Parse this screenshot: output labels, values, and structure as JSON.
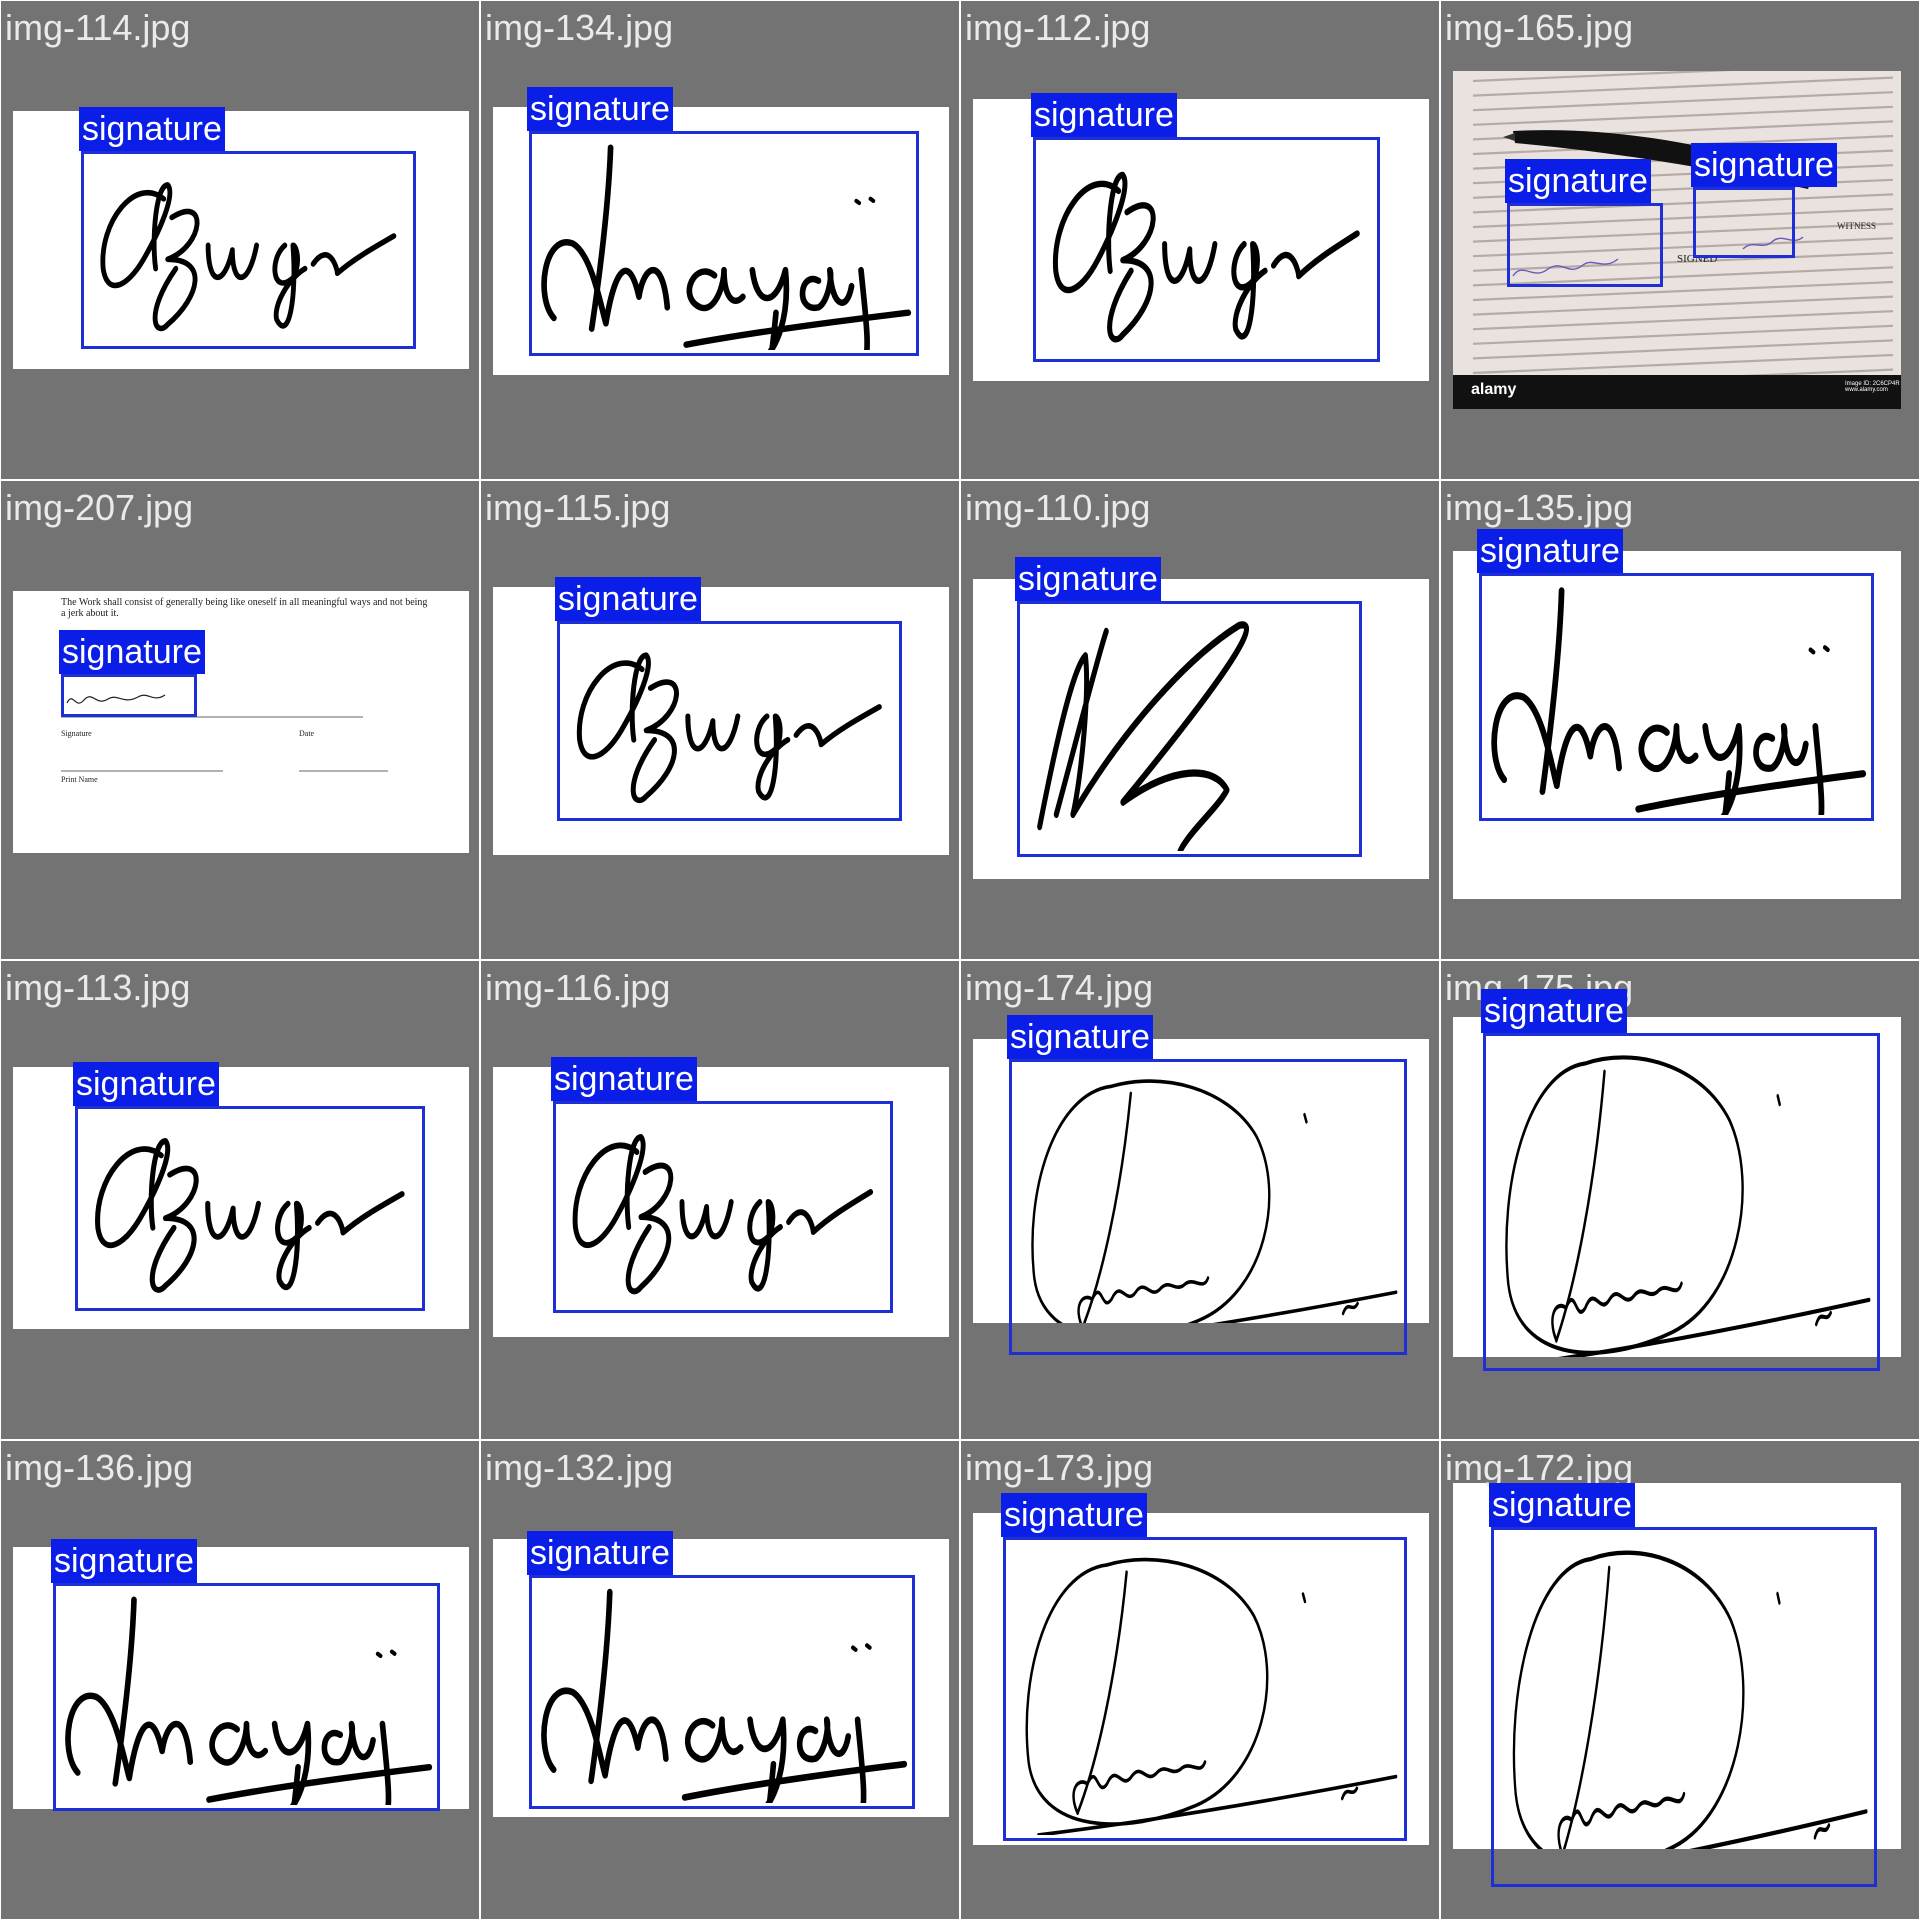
{
  "label_text": "signature",
  "colors": {
    "tile_bg": "#737373",
    "box": "#1f2fd6",
    "label_bg": "#0a1ee8"
  },
  "tiles": [
    {
      "file": "img-114.jpg",
      "sig": "cb",
      "boxes": 1
    },
    {
      "file": "img-134.jpg",
      "sig": "maj",
      "boxes": 1
    },
    {
      "file": "img-112.jpg",
      "sig": "cb",
      "boxes": 1
    },
    {
      "file": "img-165.jpg",
      "sig": "photo",
      "boxes": 2
    },
    {
      "file": "img-207.jpg",
      "sig": "doc",
      "boxes": 1
    },
    {
      "file": "img-115.jpg",
      "sig": "cb",
      "boxes": 1
    },
    {
      "file": "img-110.jpg",
      "sig": "zig",
      "boxes": 1
    },
    {
      "file": "img-135.jpg",
      "sig": "maj",
      "boxes": 1
    },
    {
      "file": "img-113.jpg",
      "sig": "cb",
      "boxes": 1
    },
    {
      "file": "img-116.jpg",
      "sig": "cb",
      "boxes": 1
    },
    {
      "file": "img-174.jpg",
      "sig": "oval",
      "boxes": 1
    },
    {
      "file": "img-175.jpg",
      "sig": "oval",
      "boxes": 1
    },
    {
      "file": "img-136.jpg",
      "sig": "maj",
      "boxes": 1
    },
    {
      "file": "img-132.jpg",
      "sig": "maj",
      "boxes": 1
    },
    {
      "file": "img-173.jpg",
      "sig": "oval",
      "boxes": 1
    },
    {
      "file": "img-172.jpg",
      "sig": "oval",
      "boxes": 1
    }
  ],
  "doc": {
    "body": "The Work shall consist of generally being like oneself in all meaningful ways and not being a jerk about it.",
    "signature_caption": "Signature",
    "date_caption": "Date",
    "print_caption": "Print Name"
  },
  "photo": {
    "signed": "SIGNED",
    "witness": "WITNESS",
    "brand": "alamy",
    "stamp_id": "Image ID: 2C6CP4R",
    "stamp_url": "www.alamy.com"
  }
}
